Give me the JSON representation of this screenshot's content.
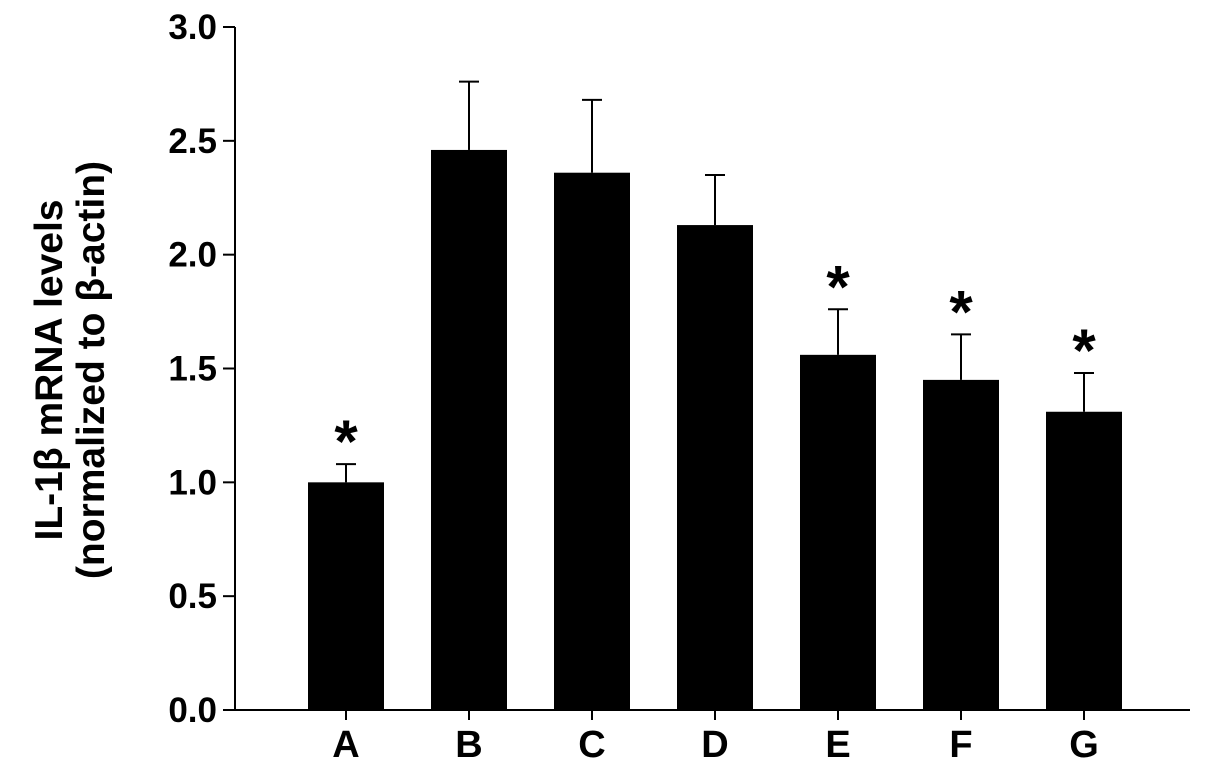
{
  "chart_data": {
    "type": "bar",
    "title": "",
    "xlabel": "",
    "ylabel": "IL-1β mRNA levels",
    "ylabel_line2": "(normalized to β-actin)",
    "categories": [
      "A",
      "B",
      "C",
      "D",
      "E",
      "F",
      "G"
    ],
    "series": [
      {
        "values": [
          1.0,
          2.46,
          2.36,
          2.13,
          1.56,
          1.45,
          1.31
        ],
        "error": [
          0.08,
          0.3,
          0.32,
          0.22,
          0.2,
          0.2,
          0.17
        ],
        "color": "#000000"
      }
    ],
    "significant": [
      true,
      false,
      false,
      false,
      true,
      true,
      true
    ],
    "significance_marker": "*",
    "ylim": [
      0,
      3.0
    ],
    "yticks": [
      0.0,
      0.5,
      1.0,
      1.5,
      2.0,
      2.5,
      3.0
    ],
    "ytick_labels": [
      "0.0",
      "0.5",
      "1.0",
      "1.5",
      "2.0",
      "2.5",
      "3.0"
    ],
    "grid": false,
    "legend": "none"
  }
}
